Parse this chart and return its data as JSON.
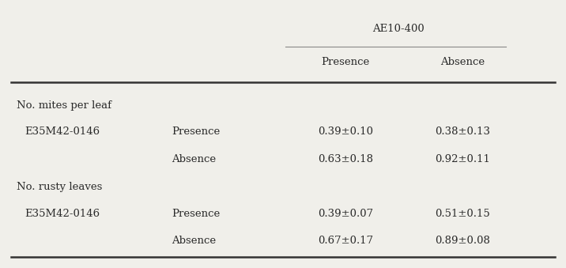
{
  "title_col": "AE10-400",
  "sub_col1": "Presence",
  "sub_col2": "Absence",
  "rows": [
    {
      "label1": "No. mites per leaf",
      "label2": "",
      "val1": "",
      "val2": ""
    },
    {
      "label1": " E35M42-0146",
      "label2": "Presence",
      "val1": "0.39±0.10",
      "val2": "0.38±0.13"
    },
    {
      "label1": "",
      "label2": "Absence",
      "val1": "0.63±0.18",
      "val2": "0.92±0.11"
    },
    {
      "label1": "No. rusty leaves",
      "label2": "",
      "val1": "",
      "val2": ""
    },
    {
      "label1": " E35M42-0146",
      "label2": "Presence",
      "val1": "0.39±0.07",
      "val2": "0.51±0.15"
    },
    {
      "label1": "",
      "label2": "Absence",
      "val1": "0.67±0.17",
      "val2": "0.89±0.08"
    }
  ],
  "bg_color": "#f0efea",
  "text_color": "#2a2a2a",
  "font_size": 9.5
}
